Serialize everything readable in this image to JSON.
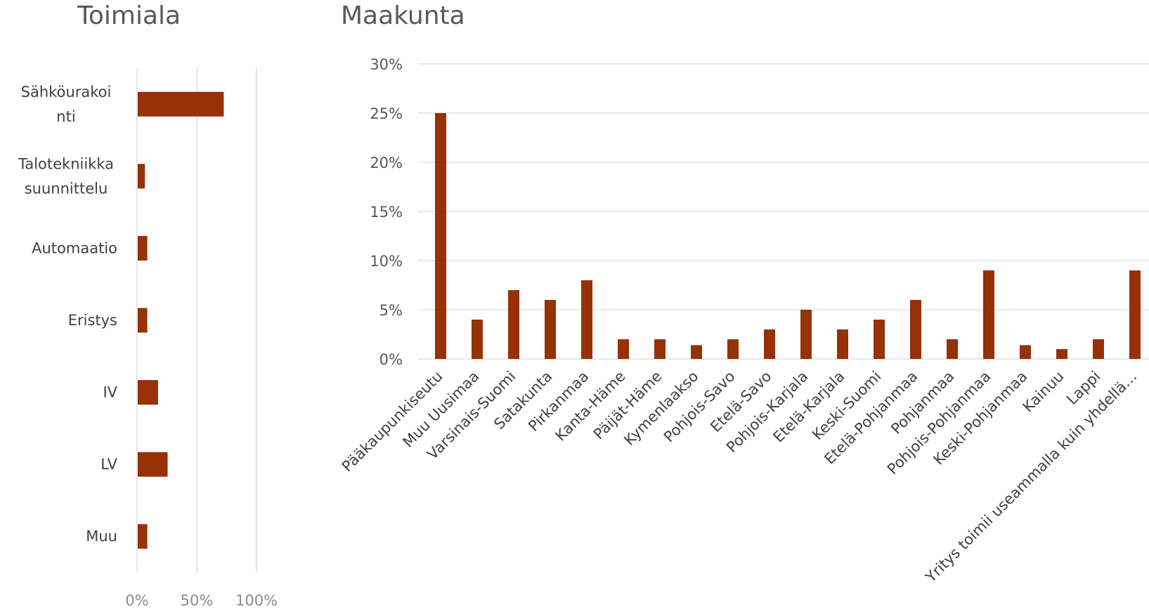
{
  "colors": {
    "bar": "#973106",
    "grid": "#d9d9d9",
    "title_text": "#595959"
  },
  "chart_data": [
    {
      "type": "bar",
      "orientation": "horizontal",
      "title": "Toimiala",
      "categories": [
        "Sähköurakointi",
        "Talotekniikka suunnittelu",
        "Automaatio",
        "Eristys",
        "IV",
        "LV",
        "Muu"
      ],
      "category_lines": [
        [
          "Sähköurakoi",
          "nti"
        ],
        [
          "Talotekniikka",
          "suunnittelu"
        ],
        [
          "Automaatio"
        ],
        [
          "Eristys"
        ],
        [
          "IV"
        ],
        [
          "LV"
        ],
        [
          "Muu"
        ]
      ],
      "values": [
        72,
        6,
        8,
        8,
        17,
        25,
        8
      ],
      "xlim": [
        0,
        100
      ],
      "xticks": [
        0,
        50,
        100
      ],
      "xtick_labels": [
        "0%",
        "50%",
        "100%"
      ],
      "grid": true
    },
    {
      "type": "bar",
      "orientation": "vertical",
      "title": "Maakunta",
      "categories": [
        "Pääkaupunkiseutu",
        "Muu Uusimaa",
        "Varsinais-Suomi",
        "Satakunta",
        "Pirkanmaa",
        "Kanta-Häme",
        "Päijät-Häme",
        "Kymenlaakso",
        "Pohjois-Savo",
        "Etelä-Savo",
        "Pohjois-Karjala",
        "Etelä-Karjala",
        "Keski-Suomi",
        "Etelä-Pohjanmaa",
        "Pohjanmaa",
        "Pohjois-Pohjanmaa",
        "Keski-Pohjanmaa",
        "Kainuu",
        "Lappi",
        "Yritys toimii useammalla kuin yhdellä…"
      ],
      "values": [
        25,
        4,
        7,
        6,
        8,
        2,
        2,
        1.4,
        2,
        3,
        5,
        3,
        4,
        6,
        2,
        9,
        1.4,
        1,
        2,
        9
      ],
      "ylim": [
        0,
        30
      ],
      "yticks": [
        0,
        5,
        10,
        15,
        20,
        25,
        30
      ],
      "ytick_labels": [
        "0%",
        "5%",
        "10%",
        "15%",
        "20%",
        "25%",
        "30%"
      ],
      "grid": true
    }
  ]
}
